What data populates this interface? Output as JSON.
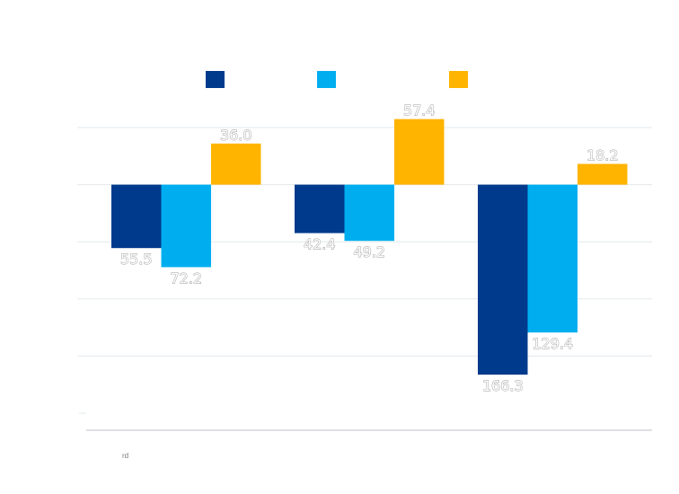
{
  "chart_data": {
    "type": "bar",
    "title": "",
    "xlabel": "",
    "ylabel": "",
    "categories": [
      "",
      "",
      ""
    ],
    "ylim": [
      -200,
      50
    ],
    "grid": true,
    "legend_position": "top-center",
    "series": [
      {
        "color": "#003a8c",
        "values": [
          -55.5,
          -42.4,
          -166.3
        ],
        "labels": [
          "55.5",
          "42.4",
          "166.3"
        ]
      },
      {
        "color": "#00aeef",
        "values": [
          -72.2,
          -49.2,
          -129.4
        ],
        "labels": [
          "72.2",
          "49.2",
          "129.4"
        ]
      },
      {
        "color": "#ffb400",
        "values": [
          36.0,
          57.4,
          18.2
        ],
        "labels": [
          "36.0",
          "57.4",
          "18.2"
        ]
      }
    ],
    "yticks": [
      50,
      0,
      -50,
      -100,
      -150,
      -200
    ],
    "ytick_labels": [
      "",
      "",
      "",
      "",
      "",
      ""
    ]
  },
  "footnote": "rd"
}
